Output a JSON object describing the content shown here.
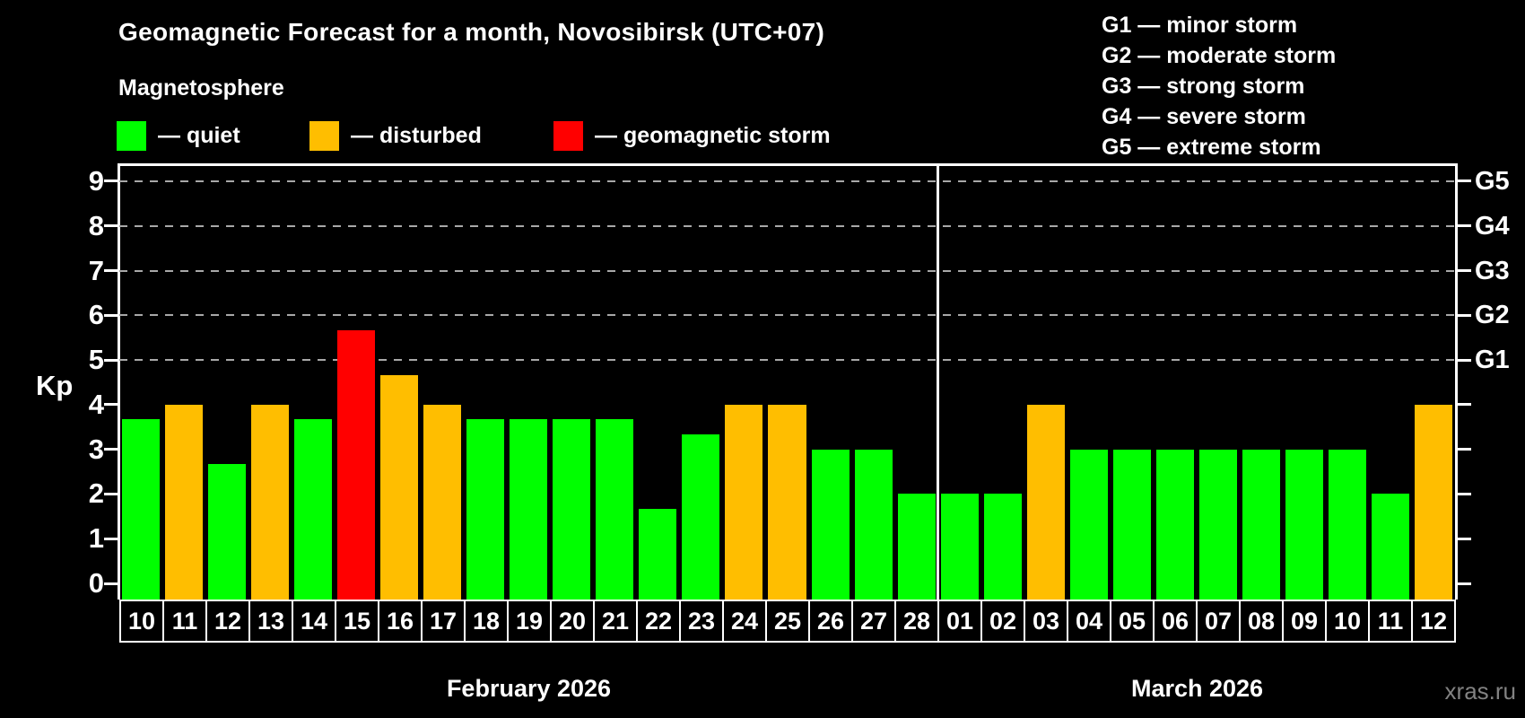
{
  "title": "Geomagnetic Forecast for a month, Novosibirsk (UTC+07)",
  "subtitle": "Magnetosphere",
  "legend": {
    "items": [
      {
        "label": "— quiet",
        "state": "quiet"
      },
      {
        "label": "— disturbed",
        "state": "disturbed"
      },
      {
        "label": "— geomagnetic storm",
        "state": "storm"
      }
    ]
  },
  "g_legend": [
    "G1 — minor storm",
    "G2 — moderate storm",
    "G3 — strong storm",
    "G4 — severe storm",
    "G5 — extreme storm"
  ],
  "watermark": "xras.ru",
  "colors": {
    "quiet": "#00FF00",
    "disturbed": "#FFBE00",
    "storm": "#FF0000",
    "background": "#000000",
    "grid": "#A8A8A8",
    "axis": "#FFFFFF",
    "watermark_text": "#828282"
  },
  "chart_data": {
    "type": "bar",
    "ylabel": "Kp",
    "ylim": [
      0,
      9
    ],
    "yticks": [
      0,
      1,
      2,
      3,
      4,
      5,
      6,
      7,
      8,
      9
    ],
    "grid": "dashed horizontal at storm levels only",
    "legend_position": "top",
    "right_axis": [
      {
        "kp": 5,
        "label": "G1"
      },
      {
        "kp": 6,
        "label": "G2"
      },
      {
        "kp": 7,
        "label": "G3"
      },
      {
        "kp": 8,
        "label": "G4"
      },
      {
        "kp": 9,
        "label": "G5"
      }
    ],
    "months": [
      {
        "label": "February 2026",
        "days": 19
      },
      {
        "label": "March 2026",
        "days": 12
      }
    ],
    "bars": [
      {
        "day": "10",
        "kp": 3.67,
        "state": "quiet"
      },
      {
        "day": "11",
        "kp": 4,
        "state": "disturbed"
      },
      {
        "day": "12",
        "kp": 2.67,
        "state": "quiet"
      },
      {
        "day": "13",
        "kp": 4,
        "state": "disturbed"
      },
      {
        "day": "14",
        "kp": 3.67,
        "state": "quiet"
      },
      {
        "day": "15",
        "kp": 5.67,
        "state": "storm"
      },
      {
        "day": "16",
        "kp": 4.67,
        "state": "disturbed"
      },
      {
        "day": "17",
        "kp": 4,
        "state": "disturbed"
      },
      {
        "day": "18",
        "kp": 3.67,
        "state": "quiet"
      },
      {
        "day": "19",
        "kp": 3.67,
        "state": "quiet"
      },
      {
        "day": "20",
        "kp": 3.67,
        "state": "quiet"
      },
      {
        "day": "21",
        "kp": 3.67,
        "state": "quiet"
      },
      {
        "day": "22",
        "kp": 1.67,
        "state": "quiet"
      },
      {
        "day": "23",
        "kp": 3.33,
        "state": "quiet"
      },
      {
        "day": "24",
        "kp": 4,
        "state": "disturbed"
      },
      {
        "day": "25",
        "kp": 4,
        "state": "disturbed"
      },
      {
        "day": "26",
        "kp": 3,
        "state": "quiet"
      },
      {
        "day": "27",
        "kp": 3,
        "state": "quiet"
      },
      {
        "day": "28",
        "kp": 2,
        "state": "quiet"
      },
      {
        "day": "01",
        "kp": 2,
        "state": "quiet"
      },
      {
        "day": "02",
        "kp": 2,
        "state": "quiet"
      },
      {
        "day": "03",
        "kp": 4,
        "state": "disturbed"
      },
      {
        "day": "04",
        "kp": 3,
        "state": "quiet"
      },
      {
        "day": "05",
        "kp": 3,
        "state": "quiet"
      },
      {
        "day": "06",
        "kp": 3,
        "state": "quiet"
      },
      {
        "day": "07",
        "kp": 3,
        "state": "quiet"
      },
      {
        "day": "08",
        "kp": 3,
        "state": "quiet"
      },
      {
        "day": "09",
        "kp": 3,
        "state": "quiet"
      },
      {
        "day": "10",
        "kp": 3,
        "state": "quiet"
      },
      {
        "day": "11",
        "kp": 2,
        "state": "quiet"
      },
      {
        "day": "12",
        "kp": 4,
        "state": "disturbed"
      }
    ]
  }
}
